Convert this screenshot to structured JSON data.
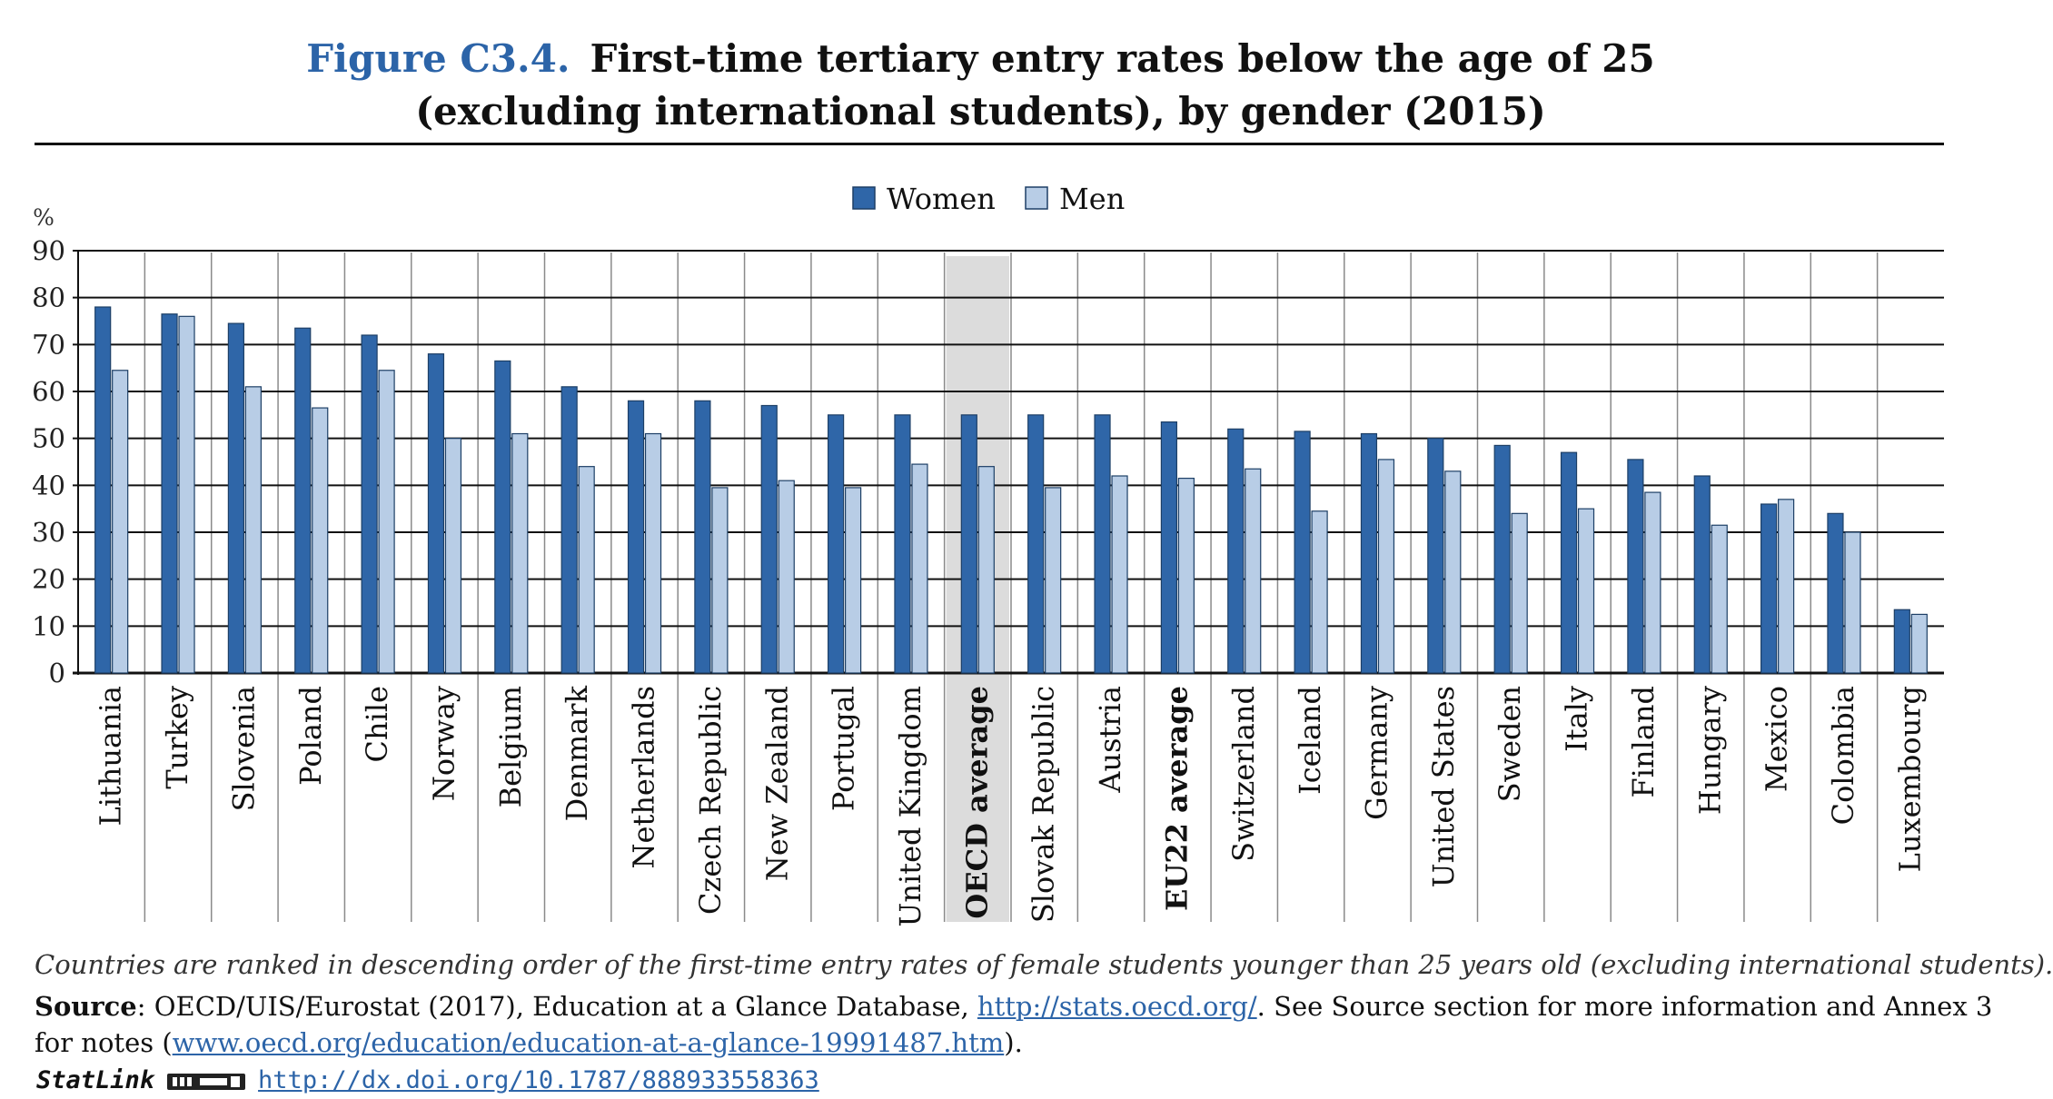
{
  "figure": {
    "label": "Figure C3.4.",
    "title_line_1": "First-time tertiary entry rates below the age of 25",
    "title_line_2": "(excluding international students), by gender (2015)",
    "note": "Countries are ranked in descending order of the first-time entry rates of female students younger than 25 years old (excluding international students).",
    "source_label": "Source",
    "source_text_1": ": OECD/UIS/Eurostat (2017), Education at a Glance Database, ",
    "source_link_1": "http://stats.oecd.org/",
    "source_text_2": ". See Source section for more information and Annex 3",
    "source_text_3": "for notes (",
    "source_link_2": "www.oecd.org/education/education-at-a-glance-19991487.htm",
    "source_text_4": ").",
    "statlink_label": "StatLink",
    "statlink_icon": "statlink-logo-icon",
    "statlink_url": "http://dx.doi.org/10.1787/888933558363"
  },
  "chart_data": {
    "type": "bar",
    "title": "First-time tertiary entry rates below the age of 25 (excluding international students), by gender (2015)",
    "ylabel": "%",
    "ylim": [
      0,
      90
    ],
    "yticks": [
      0,
      10,
      20,
      30,
      40,
      50,
      60,
      70,
      80,
      90
    ],
    "grid": true,
    "legend": "top-center",
    "categories": [
      "Lithuania",
      "Turkey",
      "Slovenia",
      "Poland",
      "Chile",
      "Norway",
      "Belgium",
      "Denmark",
      "Netherlands",
      "Czech Republic",
      "New Zealand",
      "Portugal",
      "United Kingdom",
      "OECD average",
      "Slovak Republic",
      "Austria",
      "EU22 average",
      "Switzerland",
      "Iceland",
      "Germany",
      "United States",
      "Sweden",
      "Italy",
      "Finland",
      "Hungary",
      "Mexico",
      "Colombia",
      "Luxembourg"
    ],
    "highlighted_categories": [
      "OECD average",
      "EU22 average"
    ],
    "shaded_category": "OECD average",
    "series": [
      {
        "name": "Women",
        "color": "#2f66a8",
        "values": [
          78,
          76.5,
          74.5,
          73.5,
          72,
          68,
          66.5,
          61,
          58,
          58,
          57,
          55,
          55,
          55,
          55,
          55,
          53.5,
          52,
          51.5,
          51,
          50,
          48.5,
          47,
          45.5,
          42,
          36,
          34,
          13.5
        ]
      },
      {
        "name": "Men",
        "color": "#b8cde6",
        "values": [
          64.5,
          76,
          61,
          56.5,
          64.5,
          50,
          51,
          44,
          51,
          39.5,
          41,
          39.5,
          44.5,
          44,
          39.5,
          42,
          41.5,
          43.5,
          34.5,
          45.5,
          43,
          34,
          35,
          38.5,
          31.5,
          37,
          30,
          12.5
        ]
      }
    ]
  }
}
